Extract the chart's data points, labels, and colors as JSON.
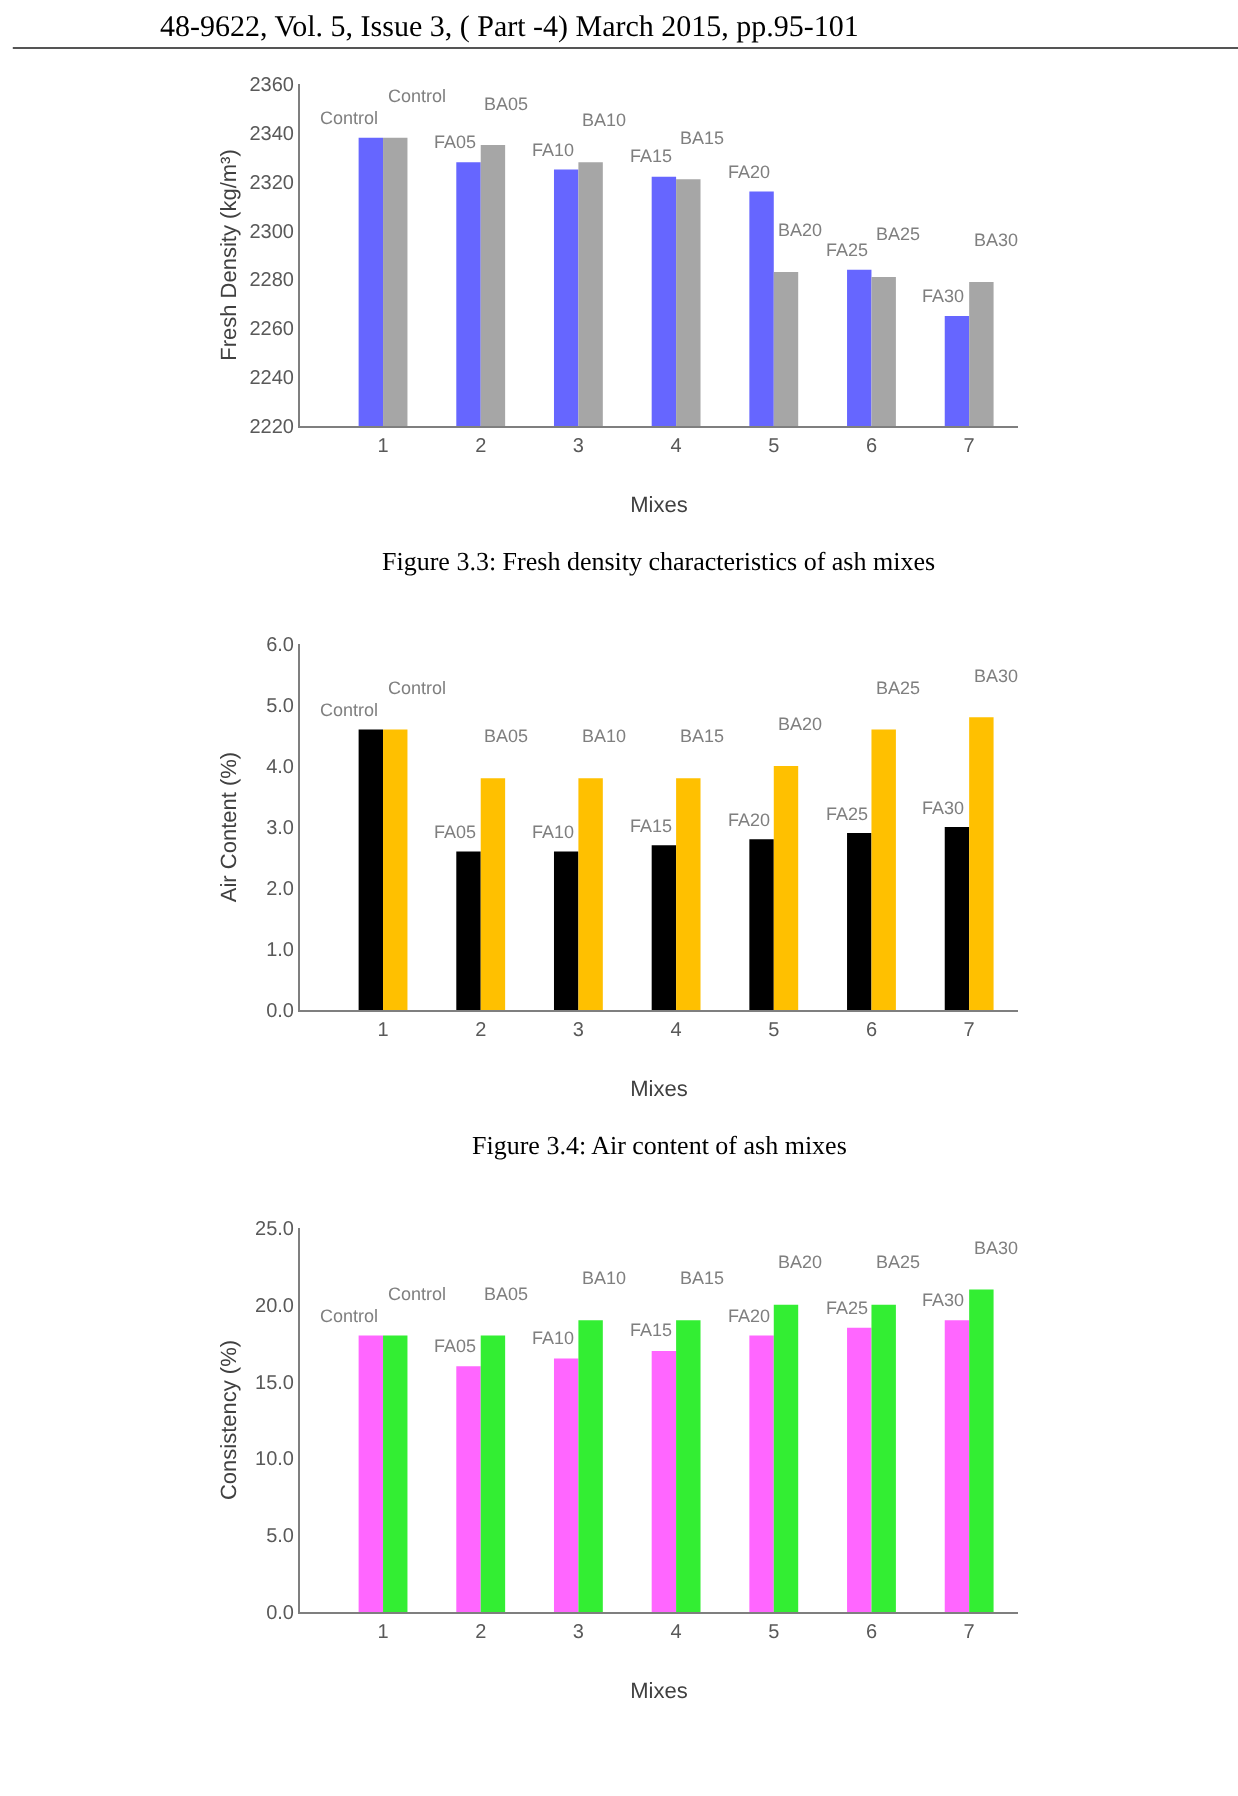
{
  "chart_data": [
    {
      "type": "bar",
      "subtitle": "48-9622, Vol. 5, Issue 3, ( Part -4) March 2015, pp.95-101",
      "xlabel": "Mixes",
      "ylabel": "Fresh Density (kg/m³)",
      "annotations": [
        "Figure 3.3: Fresh density characteristics of ash mixes"
      ],
      "categories": [
        "1",
        "2",
        "3",
        "4",
        "5",
        "6",
        "7"
      ],
      "series": [
        {
          "color": "#6666ff",
          "values": [
            2338,
            2328,
            2325,
            2322,
            2316,
            2284,
            2265
          ],
          "value_labels": [
            "Control",
            "FA05",
            "FA10",
            "FA15",
            "FA20",
            "FA25",
            "FA30"
          ]
        },
        {
          "color": "#a6a6a6",
          "values": [
            2338,
            2335,
            2328,
            2321,
            2283,
            2281,
            2279
          ],
          "value_labels": [
            "Control",
            "BA05",
            "BA10",
            "BA15",
            "BA20",
            "BA25",
            "BA30"
          ]
        }
      ],
      "ylim": [
        2220,
        2360
      ],
      "yticks": [
        2220,
        2240,
        2260,
        2280,
        2300,
        2320,
        2340,
        2360
      ]
    },
    {
      "type": "bar",
      "xlabel": "Mixes",
      "ylabel": "Air Content (%)",
      "annotations": [
        "Figure 3.4: Air content of ash mixes"
      ],
      "categories": [
        "1",
        "2",
        "3",
        "4",
        "5",
        "6",
        "7"
      ],
      "series": [
        {
          "color": "#000000",
          "values": [
            4.6,
            2.6,
            2.6,
            2.7,
            2.8,
            2.9,
            3.0
          ],
          "value_labels": [
            "Control",
            "FA05",
            "FA10",
            "FA15",
            "FA20",
            "FA25",
            "FA30"
          ]
        },
        {
          "color": "#ffc000",
          "values": [
            4.6,
            3.8,
            3.8,
            3.8,
            4.0,
            4.6,
            4.8
          ],
          "value_labels": [
            "Control",
            "BA05",
            "BA10",
            "BA15",
            "BA20",
            "BA25",
            "BA30"
          ]
        }
      ],
      "ylim": [
        0,
        6
      ],
      "yticks": [
        {
          "value": 0,
          "label": "0.0"
        },
        {
          "value": 1,
          "label": "1.0"
        },
        {
          "value": 2,
          "label": "2.0"
        },
        {
          "value": 3,
          "label": "3.0"
        },
        {
          "value": 4,
          "label": "4.0"
        },
        {
          "value": 5,
          "label": "5.0"
        },
        {
          "value": 6,
          "label": "6.0"
        }
      ]
    },
    {
      "type": "bar",
      "xlabel": "Mixes",
      "ylabel": "Consistency (%)",
      "categories": [
        "1",
        "2",
        "3",
        "4",
        "5",
        "6",
        "7"
      ],
      "series": [
        {
          "color": "#ff66ff",
          "values": [
            18.0,
            16.0,
            16.5,
            17.0,
            18.0,
            18.5,
            19.0
          ],
          "value_labels": [
            "Control",
            "FA05",
            "FA10",
            "FA15",
            "FA20",
            "FA25",
            "FA30"
          ]
        },
        {
          "color": "#33ee33",
          "values": [
            18.0,
            18.0,
            19.0,
            19.0,
            20.0,
            20.0,
            21.0
          ],
          "value_labels": [
            "Control",
            "BA05",
            "BA10",
            "BA15",
            "BA20",
            "BA25",
            "BA30"
          ]
        }
      ],
      "ylim": [
        0,
        25
      ],
      "yticks": [
        {
          "value": 0,
          "label": "0.0"
        },
        {
          "value": 5,
          "label": "5.0"
        },
        {
          "value": 10,
          "label": "10.0"
        },
        {
          "value": 15,
          "label": "15.0"
        },
        {
          "value": 20,
          "label": "20.0"
        },
        {
          "value": 25,
          "label": "25.0"
        }
      ]
    }
  ]
}
